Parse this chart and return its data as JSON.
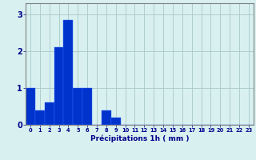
{
  "values": [
    1.0,
    0.4,
    0.6,
    2.1,
    2.85,
    1.0,
    1.0,
    0.0,
    0.4,
    0.2,
    0,
    0,
    0,
    0,
    0,
    0,
    0,
    0,
    0,
    0,
    0,
    0,
    0,
    0
  ],
  "bar_color": "#0033cc",
  "bar_edge_color": "#3366ff",
  "background_color": "#d8f0f0",
  "grid_color": "#aac8c8",
  "xlabel": "Précipitations 1h ( mm )",
  "xlabel_color": "#00008b",
  "tick_color": "#00008b",
  "ylim": [
    0,
    3.3
  ],
  "yticks": [
    0,
    1,
    2,
    3
  ],
  "num_bars": 24,
  "fig_width": 3.2,
  "fig_height": 2.0,
  "dpi": 100
}
